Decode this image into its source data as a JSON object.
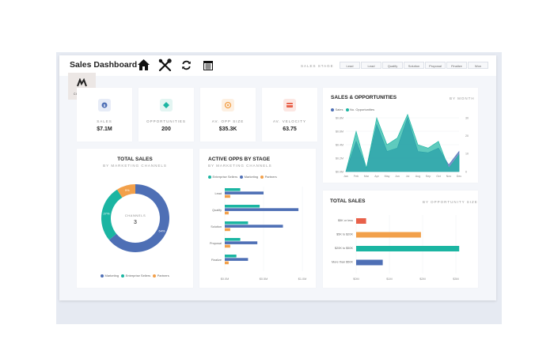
{
  "header": {
    "title": "Sales Dashboard",
    "icons": [
      "home-icon",
      "tools-icon",
      "refresh-icon",
      "calendar-icon"
    ],
    "stage_label": "SALES STAGE",
    "stages": [
      "Lead",
      "Lead",
      "Qualify",
      "Solution",
      "Proposal",
      "Finalize",
      "Won"
    ]
  },
  "logo": {
    "text": "COMPANY"
  },
  "kpis": [
    {
      "label": "SALES",
      "value": "$7.1M",
      "icon": "dollar-icon",
      "color": "#4e6fb5",
      "bg": "#e7ecf7"
    },
    {
      "label": "OPPORTUNITIES",
      "value": "200",
      "icon": "diamond-icon",
      "color": "#1bb5a2",
      "bg": "#e3f5f2"
    },
    {
      "label": "AV. OPP SIZE",
      "value": "$35.3K",
      "icon": "coins-icon",
      "color": "#f2a04a",
      "bg": "#fdf0e2"
    },
    {
      "label": "AV. VELOCITY",
      "value": "63.75",
      "icon": "card-icon",
      "color": "#e8614a",
      "bg": "#fce7e3"
    }
  ],
  "total_sales_channels": {
    "title": "TOTAL SALES",
    "subtitle": "BY MARKETING CHANNELS",
    "center_label": "CHANNELS",
    "center_value": "3",
    "legend": [
      "Marketing",
      "Enterprise Sellers",
      "Partners"
    ]
  },
  "active_opps": {
    "title": "ACTIVE OPPS BY STAGE",
    "subtitle": "BY MARKETING CHANNELS",
    "legend": [
      "Enterprise Sellers",
      "Marketing",
      "Partners"
    ]
  },
  "sales_opps": {
    "title": "SALES & OPPORTUNITIES",
    "subtitle": "BY MONTH",
    "legend": [
      "Sales",
      "No. Opportunities"
    ]
  },
  "total_sales_size": {
    "title": "TOTAL SALES",
    "subtitle": "BY OPPORTUNITY SIZE"
  },
  "chart_data": [
    {
      "type": "pie",
      "categories": [
        "Marketing",
        "Enterprise Sellers",
        "Partners"
      ],
      "values": [
        64,
        27,
        9
      ],
      "labels": [
        "64%",
        "27%",
        "9%"
      ],
      "colors": [
        "#4e6fb5",
        "#1bb5a2",
        "#f2a04a"
      ]
    },
    {
      "type": "bar",
      "categories": [
        "Lead",
        "Qualify",
        "Solution",
        "Proposal",
        "Finalize"
      ],
      "series": [
        {
          "name": "Enterprise Sellers",
          "values": [
            0.2,
            0.45,
            0.3,
            0.2,
            0.15
          ],
          "color": "#1bb5a2"
        },
        {
          "name": "Marketing",
          "values": [
            0.5,
            0.95,
            0.75,
            0.42,
            0.3
          ],
          "color": "#4e6fb5"
        },
        {
          "name": "Partners",
          "values": [
            0.07,
            0.05,
            0.07,
            0.07,
            0.05
          ],
          "color": "#f2a04a"
        }
      ],
      "ticks": [
        "$0.0M",
        "$0.5M",
        "$1.0M"
      ],
      "xlim": [
        0,
        1
      ]
    },
    {
      "type": "area",
      "categories": [
        "Jan",
        "Feb",
        "Mar",
        "Apr",
        "May",
        "Jun",
        "Jul",
        "Aug",
        "Sep",
        "Oct",
        "Nov",
        "Dec"
      ],
      "series": [
        {
          "name": "Sales",
          "values": [
            0,
            0.45,
            0.05,
            0.7,
            0.3,
            0.35,
            0.8,
            0.3,
            0.28,
            0.35,
            0.1,
            0.3
          ],
          "color": "#4e6fb5"
        },
        {
          "name": "No. Opportunities",
          "values": [
            0,
            0.6,
            0.05,
            0.8,
            0.4,
            0.5,
            0.85,
            0.4,
            0.35,
            0.45,
            0.05,
            0.25
          ],
          "color": "#1bb5a2"
        }
      ],
      "yticks_left": [
        "$0.0M",
        "$0.2M",
        "$0.4M",
        "$0.6M",
        "$0.8M"
      ],
      "yticks_right": [
        "0",
        "10",
        "20",
        "30"
      ],
      "ylim": [
        0,
        0.8
      ]
    },
    {
      "type": "bar",
      "categories": [
        "$5K or less",
        "$5K to $20K",
        "$20K to $50K",
        "More than $50K"
      ],
      "values": [
        0.3,
        1.95,
        3.1,
        0.8
      ],
      "colors": [
        "#e8614a",
        "#f2a04a",
        "#1bb5a2",
        "#4e6fb5"
      ],
      "ticks": [
        "$0M",
        "$1M",
        "$2M",
        "$3M"
      ],
      "xlim": [
        0,
        3
      ]
    }
  ]
}
